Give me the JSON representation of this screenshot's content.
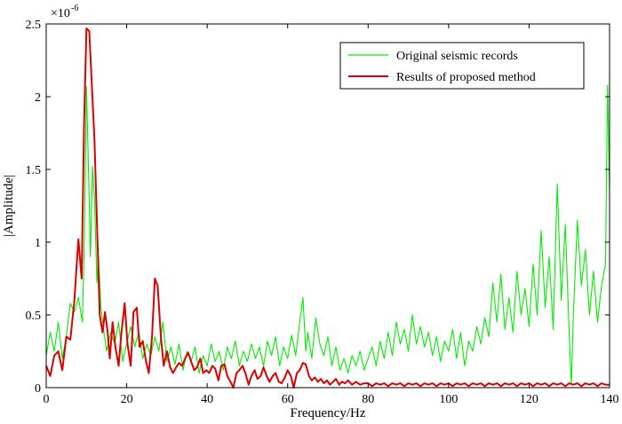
{
  "chart_data": {
    "type": "line",
    "title": "",
    "xlabel": "Frequency/Hz",
    "ylabel": "|Amplitude|",
    "y_exponent": {
      "base": "×10",
      "power": "-6"
    },
    "xlim": [
      0,
      140
    ],
    "ylim": [
      0,
      2.5
    ],
    "x_ticks": [
      0,
      20,
      40,
      60,
      80,
      100,
      120,
      140
    ],
    "x_tick_labels": [
      "0",
      "20",
      "40",
      "60",
      "80",
      "100",
      "120",
      "140"
    ],
    "y_ticks": [
      0,
      0.5,
      1,
      1.5,
      2,
      2.5
    ],
    "y_tick_labels": [
      "0",
      "0.5",
      "1",
      "1.5",
      "2",
      "2.5"
    ],
    "legend_position": "top-right",
    "series": [
      {
        "name": "Original seismic records",
        "color": "#00ee00",
        "points": [
          [
            0,
            0.22
          ],
          [
            1,
            0.38
          ],
          [
            2,
            0.25
          ],
          [
            3,
            0.45
          ],
          [
            4,
            0.2
          ],
          [
            5,
            0.35
          ],
          [
            6,
            0.58
          ],
          [
            7,
            0.52
          ],
          [
            8,
            0.62
          ],
          [
            9,
            0.45
          ],
          [
            9.5,
            1.05
          ],
          [
            10,
            2.07
          ],
          [
            10.6,
            1.4
          ],
          [
            11,
            0.9
          ],
          [
            11.5,
            1.52
          ],
          [
            12,
            1.3
          ],
          [
            12.6,
            0.72
          ],
          [
            13,
            0.9
          ],
          [
            13.6,
            0.55
          ],
          [
            14.5,
            0.35
          ],
          [
            15,
            0.25
          ],
          [
            16,
            0.38
          ],
          [
            17,
            0.3
          ],
          [
            18,
            0.45
          ],
          [
            19,
            0.18
          ],
          [
            20,
            0.3
          ],
          [
            21,
            0.42
          ],
          [
            22,
            0.28
          ],
          [
            23,
            0.38
          ],
          [
            24,
            0.2
          ],
          [
            25,
            0.3
          ],
          [
            26,
            0.22
          ],
          [
            27,
            0.35
          ],
          [
            28,
            0.25
          ],
          [
            29,
            0.45
          ],
          [
            30,
            0.18
          ],
          [
            31,
            0.28
          ],
          [
            32,
            0.16
          ],
          [
            33,
            0.3
          ],
          [
            34,
            0.12
          ],
          [
            35,
            0.25
          ],
          [
            36,
            0.18
          ],
          [
            37,
            0.28
          ],
          [
            38,
            0.1
          ],
          [
            39,
            0.22
          ],
          [
            40,
            0.15
          ],
          [
            41,
            0.3
          ],
          [
            42,
            0.18
          ],
          [
            43,
            0.25
          ],
          [
            44,
            0.12
          ],
          [
            45,
            0.28
          ],
          [
            46,
            0.2
          ],
          [
            47,
            0.32
          ],
          [
            48,
            0.15
          ],
          [
            49,
            0.25
          ],
          [
            50,
            0.18
          ],
          [
            51,
            0.3
          ],
          [
            52,
            0.2
          ],
          [
            53,
            0.28
          ],
          [
            54,
            0.15
          ],
          [
            55,
            0.32
          ],
          [
            56,
            0.22
          ],
          [
            57,
            0.35
          ],
          [
            58,
            0.15
          ],
          [
            59,
            0.28
          ],
          [
            60,
            0.2
          ],
          [
            61,
            0.36
          ],
          [
            62,
            0.22
          ],
          [
            63,
            0.45
          ],
          [
            63.8,
            0.62
          ],
          [
            64.5,
            0.25
          ],
          [
            65,
            0.38
          ],
          [
            66,
            0.2
          ],
          [
            67,
            0.48
          ],
          [
            68,
            0.3
          ],
          [
            69,
            0.22
          ],
          [
            70,
            0.35
          ],
          [
            71,
            0.15
          ],
          [
            72,
            0.28
          ],
          [
            73,
            0.12
          ],
          [
            74,
            0.2
          ],
          [
            75,
            0.1
          ],
          [
            76,
            0.22
          ],
          [
            77,
            0.15
          ],
          [
            78,
            0.25
          ],
          [
            79,
            0.12
          ],
          [
            80,
            0.2
          ],
          [
            81,
            0.28
          ],
          [
            82,
            0.15
          ],
          [
            83,
            0.32
          ],
          [
            84,
            0.2
          ],
          [
            85,
            0.38
          ],
          [
            86,
            0.22
          ],
          [
            87,
            0.45
          ],
          [
            88,
            0.3
          ],
          [
            89,
            0.4
          ],
          [
            90,
            0.25
          ],
          [
            91,
            0.5
          ],
          [
            92,
            0.3
          ],
          [
            93,
            0.42
          ],
          [
            94,
            0.28
          ],
          [
            95,
            0.38
          ],
          [
            96,
            0.22
          ],
          [
            97,
            0.35
          ],
          [
            98,
            0.18
          ],
          [
            99,
            0.32
          ],
          [
            100,
            0.25
          ],
          [
            101,
            0.4
          ],
          [
            102,
            0.2
          ],
          [
            103,
            0.38
          ],
          [
            104,
            0.15
          ],
          [
            105,
            0.32
          ],
          [
            106,
            0.25
          ],
          [
            107,
            0.42
          ],
          [
            108,
            0.3
          ],
          [
            109,
            0.48
          ],
          [
            110,
            0.35
          ],
          [
            111,
            0.72
          ],
          [
            112,
            0.45
          ],
          [
            113,
            0.78
          ],
          [
            114,
            0.4
          ],
          [
            115,
            0.62
          ],
          [
            116,
            0.38
          ],
          [
            117,
            0.8
          ],
          [
            118,
            0.5
          ],
          [
            119,
            0.68
          ],
          [
            120,
            0.42
          ],
          [
            121,
            0.85
          ],
          [
            122,
            0.5
          ],
          [
            123,
            1.08
          ],
          [
            124,
            0.55
          ],
          [
            125,
            0.9
          ],
          [
            126,
            0.4
          ],
          [
            127,
            1.4
          ],
          [
            128,
            0.6
          ],
          [
            129,
            1.12
          ],
          [
            130,
            0.35
          ],
          [
            130.5,
            0.02
          ],
          [
            131,
            0.5
          ],
          [
            132,
            1.15
          ],
          [
            133,
            0.7
          ],
          [
            134,
            0.95
          ],
          [
            135,
            0.5
          ],
          [
            136,
            0.8
          ],
          [
            137,
            0.45
          ],
          [
            138,
            0.7
          ],
          [
            139,
            0.85
          ],
          [
            139.5,
            2.08
          ],
          [
            140,
            1.35
          ]
        ]
      },
      {
        "name": "Results of proposed method",
        "color": "#dd0000",
        "points": [
          [
            0,
            0.15
          ],
          [
            1,
            0.08
          ],
          [
            2,
            0.22
          ],
          [
            3,
            0.25
          ],
          [
            4,
            0.12
          ],
          [
            5,
            0.35
          ],
          [
            6,
            0.33
          ],
          [
            7,
            0.6
          ],
          [
            8,
            1.02
          ],
          [
            8.8,
            0.75
          ],
          [
            9.4,
            1.8
          ],
          [
            10,
            2.47
          ],
          [
            10.7,
            2.45
          ],
          [
            11.4,
            2.05
          ],
          [
            12,
            1.7
          ],
          [
            12.7,
            1.05
          ],
          [
            13.3,
            0.5
          ],
          [
            14,
            0.38
          ],
          [
            14.6,
            0.52
          ],
          [
            15.2,
            0.4
          ],
          [
            15.8,
            0.2
          ],
          [
            16.5,
            0.45
          ],
          [
            17.2,
            0.28
          ],
          [
            18,
            0.15
          ],
          [
            18.7,
            0.38
          ],
          [
            19.5,
            0.58
          ],
          [
            20.2,
            0.3
          ],
          [
            21,
            0.15
          ],
          [
            21.7,
            0.52
          ],
          [
            22.5,
            0.55
          ],
          [
            23.2,
            0.28
          ],
          [
            24,
            0.32
          ],
          [
            24.8,
            0.18
          ],
          [
            25.5,
            0.1
          ],
          [
            26.3,
            0.35
          ],
          [
            27,
            0.75
          ],
          [
            27.7,
            0.7
          ],
          [
            28.5,
            0.35
          ],
          [
            29.2,
            0.15
          ],
          [
            30,
            0.25
          ],
          [
            30.8,
            0.14
          ],
          [
            31.5,
            0.1
          ],
          [
            32.3,
            0.14
          ],
          [
            33,
            0.17
          ],
          [
            33.8,
            0.15
          ],
          [
            34.5,
            0.2
          ],
          [
            35.3,
            0.24
          ],
          [
            36,
            0.18
          ],
          [
            36.8,
            0.12
          ],
          [
            37.5,
            0.14
          ],
          [
            38.3,
            0.2
          ],
          [
            39,
            0.1
          ],
          [
            39.8,
            0.12
          ],
          [
            40.5,
            0.1
          ],
          [
            41.3,
            0.15
          ],
          [
            42,
            0.13
          ],
          [
            42.8,
            0.05
          ],
          [
            43.5,
            0.15
          ],
          [
            44.3,
            0.16
          ],
          [
            45,
            0.08
          ],
          [
            45.8,
            0.04
          ],
          [
            46.5,
            0.0
          ],
          [
            47.3,
            0.1
          ],
          [
            48,
            0.12
          ],
          [
            48.8,
            0.15
          ],
          [
            49.5,
            0.1
          ],
          [
            50.3,
            0.02
          ],
          [
            51,
            0.08
          ],
          [
            51.8,
            0.12
          ],
          [
            52.5,
            0.06
          ],
          [
            53.3,
            0.08
          ],
          [
            54,
            0.14
          ],
          [
            54.8,
            0.08
          ],
          [
            55.5,
            0.04
          ],
          [
            56.3,
            0.08
          ],
          [
            57,
            0.1
          ],
          [
            57.8,
            0.04
          ],
          [
            58.5,
            0.03
          ],
          [
            59.3,
            0.07
          ],
          [
            60,
            0.12
          ],
          [
            60.8,
            0.08
          ],
          [
            61.5,
            0.0
          ],
          [
            62.3,
            0.1
          ],
          [
            63,
            0.12
          ],
          [
            63.8,
            0.17
          ],
          [
            64.5,
            0.16
          ],
          [
            65.3,
            0.08
          ],
          [
            66,
            0.05
          ],
          [
            66.8,
            0.07
          ],
          [
            67.5,
            0.04
          ],
          [
            68.3,
            0.06
          ],
          [
            69,
            0.03
          ],
          [
            69.8,
            0.05
          ],
          [
            70.5,
            0.02
          ],
          [
            71.3,
            0.04
          ],
          [
            72,
            0.06
          ],
          [
            72.8,
            0.02
          ],
          [
            73.5,
            0.04
          ],
          [
            74.3,
            0.03
          ],
          [
            75,
            0.05
          ],
          [
            76,
            0.02
          ],
          [
            77,
            0.04
          ],
          [
            78,
            0.02
          ],
          [
            79,
            0.03
          ],
          [
            80,
            0.03
          ],
          [
            81,
            0.01
          ],
          [
            82,
            0.03
          ],
          [
            83,
            0.02
          ],
          [
            84,
            0.03
          ],
          [
            85,
            0.01
          ],
          [
            86,
            0.03
          ],
          [
            87,
            0.02
          ],
          [
            88,
            0.03
          ],
          [
            89,
            0.01
          ],
          [
            90,
            0.03
          ],
          [
            91,
            0.02
          ],
          [
            92,
            0.03
          ],
          [
            93,
            0.01
          ],
          [
            94,
            0.03
          ],
          [
            95,
            0.02
          ],
          [
            96,
            0.03
          ],
          [
            97,
            0.01
          ],
          [
            98,
            0.03
          ],
          [
            99,
            0.02
          ],
          [
            100,
            0.03
          ],
          [
            101,
            0.01
          ],
          [
            102,
            0.03
          ],
          [
            103,
            0.02
          ],
          [
            104,
            0.03
          ],
          [
            105,
            0.01
          ],
          [
            106,
            0.03
          ],
          [
            107,
            0.02
          ],
          [
            108,
            0.03
          ],
          [
            109,
            0.01
          ],
          [
            110,
            0.03
          ],
          [
            111,
            0.02
          ],
          [
            112,
            0.03
          ],
          [
            113,
            0.01
          ],
          [
            114,
            0.03
          ],
          [
            115,
            0.02
          ],
          [
            116,
            0.03
          ],
          [
            117,
            0.01
          ],
          [
            118,
            0.03
          ],
          [
            119,
            0.02
          ],
          [
            120,
            0.03
          ],
          [
            121,
            0.01
          ],
          [
            122,
            0.03
          ],
          [
            123,
            0.02
          ],
          [
            124,
            0.03
          ],
          [
            125,
            0.01
          ],
          [
            126,
            0.03
          ],
          [
            127,
            0.02
          ],
          [
            128,
            0.03
          ],
          [
            129,
            0.01
          ],
          [
            130,
            0.03
          ],
          [
            131,
            0.02
          ],
          [
            132,
            0.03
          ],
          [
            133,
            0.01
          ],
          [
            134,
            0.03
          ],
          [
            135,
            0.02
          ],
          [
            136,
            0.03
          ],
          [
            137,
            0.01
          ],
          [
            138,
            0.03
          ],
          [
            139,
            0.02
          ],
          [
            140,
            0.02
          ]
        ]
      }
    ]
  }
}
